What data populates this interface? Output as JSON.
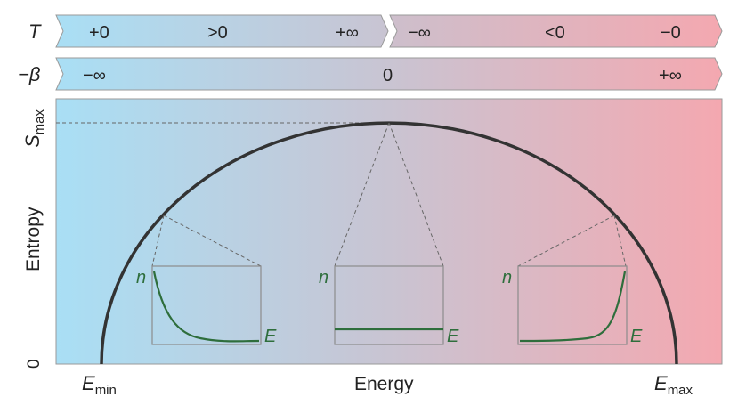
{
  "bands": {
    "temperature": {
      "symbol": "T",
      "values": [
        "+0",
        ">0",
        "+∞",
        "−∞",
        "<0",
        "−0"
      ]
    },
    "beta": {
      "symbol": "−β",
      "values": [
        "−∞",
        "0",
        "+∞"
      ]
    }
  },
  "axes": {
    "ylabel": "Entropy",
    "xlabel": "Energy",
    "ymax_label": {
      "base": "S",
      "sub": "max"
    },
    "yzero_label": "0",
    "xmin_label": {
      "base": "E",
      "sub": "min"
    },
    "xmax_label": {
      "base": "E",
      "sub": "max"
    }
  },
  "insets": [
    {
      "id": "low-energy",
      "ylabel": "n",
      "xlabel": "E",
      "curve": "decreasing-exponential"
    },
    {
      "id": "mid-energy",
      "ylabel": "n",
      "xlabel": "E",
      "curve": "flat"
    },
    {
      "id": "high-energy",
      "ylabel": "n",
      "xlabel": "E",
      "curve": "increasing-exponential"
    }
  ],
  "colors": {
    "cold": "#a9dff5",
    "mid": "#c7c3d1",
    "hot": "#f4a8b0",
    "curve": "#333333",
    "inset_curve": "#2e6e3c",
    "frame": "#9a9a9a"
  }
}
